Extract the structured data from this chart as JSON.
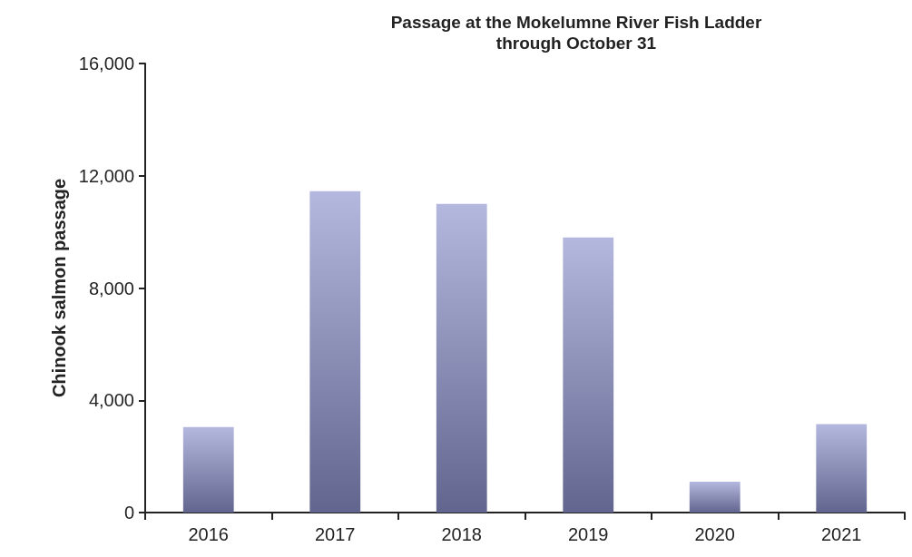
{
  "chart_data": {
    "type": "bar",
    "title": "Passage at the Mokelumne River Fish Ladder\nthrough October 31",
    "ylabel": "Chinook salmon passage",
    "categories": [
      "2016",
      "2017",
      "2018",
      "2019",
      "2020",
      "2021"
    ],
    "values": [
      3050,
      11450,
      11000,
      9800,
      1100,
      3150
    ],
    "color": "#8c92cc",
    "ylim": [
      0,
      16000
    ],
    "yticks": [
      0,
      {
        "value": 4000,
        "label": "4,000"
      },
      {
        "value": 8000,
        "label": "8,000"
      },
      {
        "value": 12000,
        "label": "12,000"
      },
      {
        "value": 16000,
        "label": "16,000"
      }
    ],
    "grid": false
  }
}
